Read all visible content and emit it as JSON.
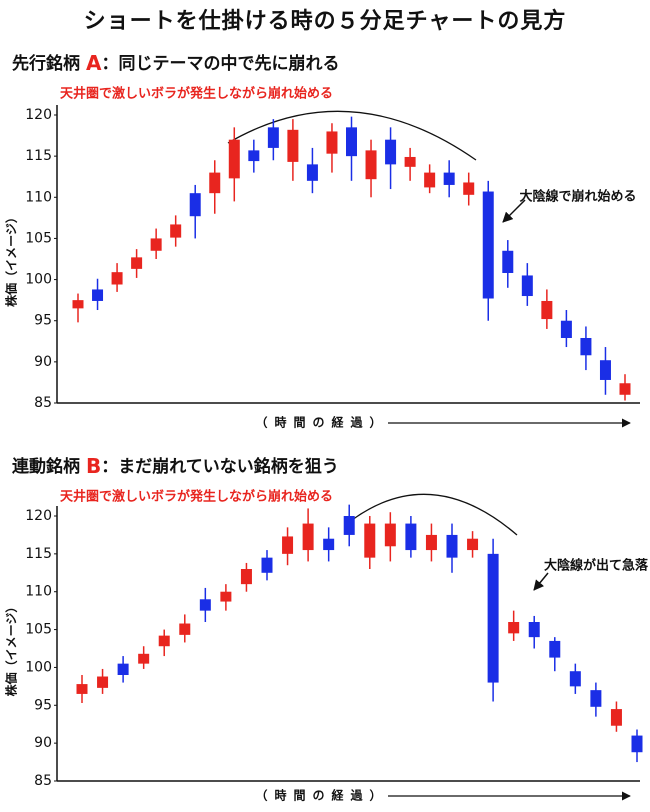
{
  "page": {
    "title": "ショートを仕掛ける時の５分足チャートの見方"
  },
  "chart_data": [
    {
      "type": "candlestick",
      "title_parts": [
        "先行銘柄",
        "A",
        "：同じテーマの中で先に崩れる"
      ],
      "top_annotation": "天井圏で激しいボラが発生しながら崩れ始める",
      "arrow_annotation": "大陰線で崩れ始める",
      "ylabel": "株価（イメージ）",
      "xlabel": "（時間の経過）",
      "ylim": [
        85,
        120
      ],
      "yticks": [
        85,
        90,
        95,
        100,
        105,
        110,
        115,
        120
      ],
      "up_color": "#e8251f",
      "down_color": "#1a2ee6",
      "open": [
        96.5,
        98.8,
        99.4,
        101.3,
        103.5,
        105.1,
        110.5,
        110.5,
        112.3,
        115.7,
        118.5,
        114.3,
        114,
        115.3,
        118.5,
        112.2,
        117,
        113.7,
        111.2,
        113,
        110.3,
        110.7,
        103.5,
        100.5,
        95.2,
        95,
        92.9,
        90.2,
        86
      ],
      "close": [
        97.5,
        97.4,
        100.9,
        102.7,
        105,
        106.7,
        107.7,
        113,
        117,
        114.4,
        116,
        118.2,
        112,
        118,
        115,
        115.7,
        114,
        114.9,
        113,
        111.5,
        111.8,
        97.7,
        100.8,
        98,
        97.4,
        92.9,
        90.8,
        87.8,
        87.4
      ],
      "high": [
        98.3,
        100.1,
        102,
        103.7,
        106.2,
        107.8,
        111.5,
        114.5,
        118.5,
        117,
        119.5,
        119.5,
        116,
        119,
        119.8,
        117,
        118.5,
        116,
        114,
        114.5,
        113,
        112,
        104.8,
        102,
        98.8,
        96.3,
        94.3,
        91.8,
        88.5
      ],
      "low": [
        94.8,
        96.3,
        98.5,
        100.2,
        102.5,
        104,
        105,
        108,
        109.5,
        113,
        114.5,
        112,
        110.5,
        113,
        112,
        110,
        111,
        112,
        110.5,
        110,
        109,
        95,
        99,
        96.8,
        94,
        91.8,
        89,
        86,
        85.3
      ]
    },
    {
      "type": "candlestick",
      "title_parts": [
        "連動銘柄",
        "B",
        "：まだ崩れていない銘柄を狙う"
      ],
      "top_annotation": "天井圏で激しいボラが発生しながら崩れ始める",
      "arrow_annotation": "大陰線が出て急落",
      "ylabel": "株価（イメージ）",
      "xlabel": "（時間の経過）",
      "ylim": [
        85,
        120
      ],
      "yticks": [
        85,
        90,
        95,
        100,
        105,
        110,
        115,
        120
      ],
      "up_color": "#e8251f",
      "down_color": "#1a2ee6",
      "open": [
        96.5,
        97.3,
        100.5,
        100.5,
        102.8,
        104.3,
        109,
        108.7,
        111,
        114.5,
        115,
        115.5,
        117,
        120,
        114.5,
        116,
        119,
        115.5,
        117.5,
        115.5,
        115,
        104.5,
        106,
        103.5,
        99.5,
        97,
        92.3,
        91
      ],
      "close": [
        97.8,
        98.8,
        99,
        101.8,
        104.2,
        105.8,
        107.5,
        110,
        113,
        112.5,
        117.3,
        119,
        115.5,
        117.5,
        119,
        119,
        115.5,
        117.5,
        114.5,
        117,
        98,
        106,
        104,
        101.3,
        97.5,
        94.8,
        94.5,
        88.8
      ],
      "high": [
        99,
        99.8,
        101.5,
        102.8,
        105,
        107,
        110.5,
        111,
        113.8,
        115.5,
        118.5,
        121,
        118.5,
        121.5,
        120,
        120.5,
        120,
        119,
        119,
        118,
        117,
        107.5,
        106.8,
        104,
        100.5,
        98,
        95.5,
        91.8
      ],
      "low": [
        95.3,
        96.5,
        98,
        99.8,
        101.5,
        103.3,
        106,
        107.5,
        110,
        111.5,
        113.5,
        114,
        114,
        116,
        113,
        114,
        114.5,
        114,
        112.5,
        114.5,
        95.5,
        103.5,
        102.5,
        99.5,
        96.5,
        93.5,
        91.5,
        87.5
      ]
    }
  ]
}
